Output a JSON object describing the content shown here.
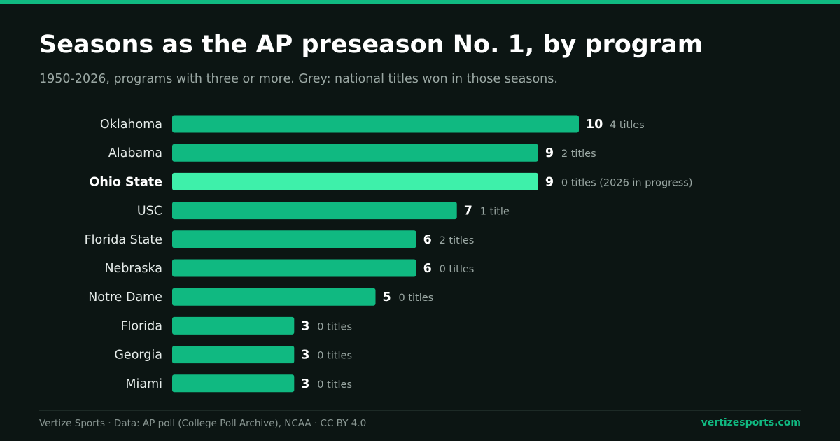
{
  "header": {
    "title": "Seasons as the AP preseason No. 1, by program",
    "subtitle": "1950-2026, programs with three or more. Grey: national titles won in those seasons."
  },
  "footer": {
    "source": "Vertize Sports · Data: AP poll (College Poll Archive), NCAA · CC BY 4.0",
    "site": "vertizesports.com"
  },
  "colors": {
    "accent": "#10b981",
    "highlight": "#3ef0aa",
    "background": "#0c1513",
    "muted_text": "#9aa7a3"
  },
  "chart_data": {
    "type": "bar",
    "orientation": "horizontal",
    "title": "Seasons as the AP preseason No. 1, by program",
    "subtitle": "1950-2026, programs with three or more. Grey: national titles won in those seasons.",
    "categories": [
      "Oklahoma",
      "Alabama",
      "Ohio State",
      "USC",
      "Florida State",
      "Nebraska",
      "Notre Dame",
      "Florida",
      "Georgia",
      "Miami"
    ],
    "values": [
      10,
      9,
      9,
      7,
      6,
      6,
      5,
      3,
      3,
      3
    ],
    "value_labels": [
      "10",
      "9",
      "9",
      "7",
      "6",
      "6",
      "5",
      "3",
      "3",
      "3"
    ],
    "titles_labels": [
      "4 titles",
      "2 titles",
      "0 titles (2026 in progress)",
      "1 title",
      "2 titles",
      "0 titles",
      "0 titles",
      "0 titles",
      "0 titles",
      "0 titles"
    ],
    "highlight": "Ohio State",
    "xlim": [
      0,
      10
    ],
    "grid": false,
    "legend": "none"
  }
}
